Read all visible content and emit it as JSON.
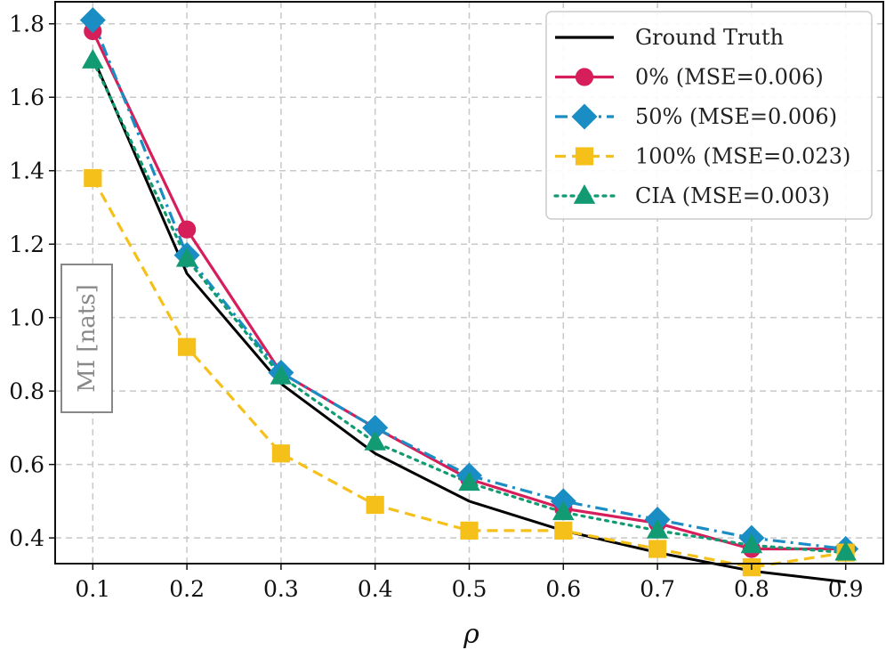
{
  "chart_data": {
    "type": "line",
    "title": "",
    "xlabel": "ρ",
    "ylabel": "MI [nats]",
    "x": [
      0.1,
      0.2,
      0.3,
      0.4,
      0.5,
      0.6,
      0.7,
      0.8,
      0.9
    ],
    "x_tick_labels": [
      "0.1",
      "0.2",
      "0.3",
      "0.4",
      "0.5",
      "0.6",
      "0.7",
      "0.8",
      "0.9"
    ],
    "y_ticks": [
      0.4,
      0.6,
      0.8,
      1.0,
      1.2,
      1.4,
      1.6,
      1.8
    ],
    "y_tick_labels": [
      "0.4",
      "0.6",
      "0.8",
      "1.0",
      "1.2",
      "1.4",
      "1.6",
      "1.8"
    ],
    "xlim": [
      0.06,
      0.94
    ],
    "ylim": [
      0.33,
      1.86
    ],
    "grid": true,
    "legend_position": "top-right",
    "series": [
      {
        "name": "Ground Truth",
        "color": "#000000",
        "dash": "solid",
        "marker": "none",
        "values": [
          1.71,
          1.12,
          0.82,
          0.63,
          0.5,
          0.42,
          0.36,
          0.31,
          0.28
        ]
      },
      {
        "name": "0% (MSE=0.006)",
        "color": "#d61f5a",
        "dash": "solid",
        "marker": "circle",
        "values": [
          1.78,
          1.24,
          0.85,
          0.7,
          0.56,
          0.48,
          0.44,
          0.37,
          0.37
        ]
      },
      {
        "name": "50% (MSE=0.006)",
        "color": "#1a8ec4",
        "dash": "dashdot",
        "marker": "diamond",
        "values": [
          1.81,
          1.17,
          0.85,
          0.7,
          0.57,
          0.5,
          0.45,
          0.4,
          0.37
        ]
      },
      {
        "name": "100% (MSE=0.023)",
        "color": "#f5c01a",
        "dash": "dashed",
        "marker": "square",
        "values": [
          1.38,
          0.92,
          0.63,
          0.49,
          0.42,
          0.42,
          0.37,
          0.32,
          0.36
        ]
      },
      {
        "name": "CIA (MSE=0.003)",
        "color": "#129b72",
        "dash": "dotted",
        "marker": "triangle",
        "values": [
          1.7,
          1.16,
          0.84,
          0.66,
          0.55,
          0.47,
          0.42,
          0.38,
          0.36
        ]
      }
    ]
  }
}
